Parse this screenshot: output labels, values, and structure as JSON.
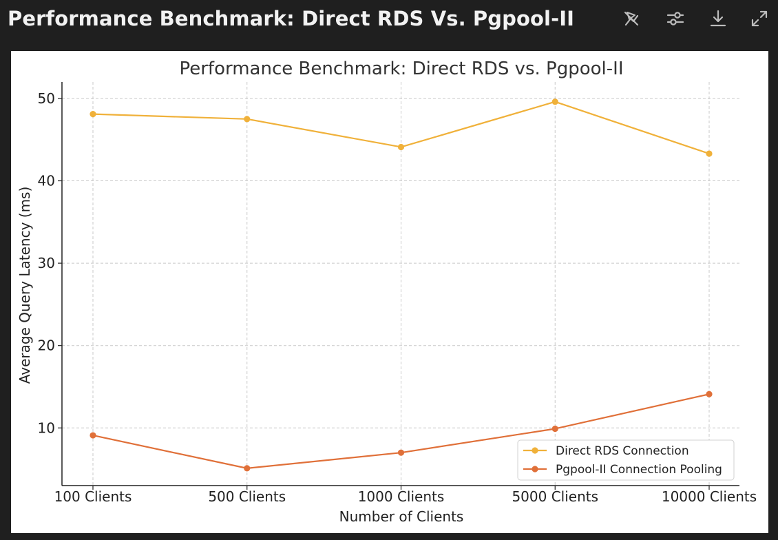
{
  "header": {
    "title": "Performance Benchmark: Direct RDS Vs. Pgpool-II",
    "toolbar": [
      {
        "name": "unpin-chart-icon"
      },
      {
        "name": "chart-settings-icon"
      },
      {
        "name": "download-icon"
      },
      {
        "name": "expand-icon"
      }
    ]
  },
  "colors": {
    "header_bg": "#1f1f1f",
    "series_direct": "#f0b13a",
    "series_pgpool": "#e07039"
  },
  "chart_data": {
    "type": "line",
    "title": "Performance Benchmark: Direct RDS vs. Pgpool-II",
    "xlabel": "Number of Clients",
    "ylabel": "Average Query Latency (ms)",
    "categories": [
      "100 Clients",
      "500 Clients",
      "1000 Clients",
      "5000 Clients",
      "10000 Clients"
    ],
    "ylim": [
      3,
      52
    ],
    "yticks": [
      10,
      20,
      30,
      40,
      50
    ],
    "grid": true,
    "legend_position": "bottom-right",
    "series": [
      {
        "name": "Direct RDS Connection",
        "values": [
          48.1,
          47.5,
          44.1,
          49.6,
          43.3
        ],
        "color": "#f0b13a"
      },
      {
        "name": "Pgpool-II Connection Pooling",
        "values": [
          9.1,
          5.1,
          7.0,
          9.9,
          14.1
        ],
        "color": "#e07039"
      }
    ]
  }
}
